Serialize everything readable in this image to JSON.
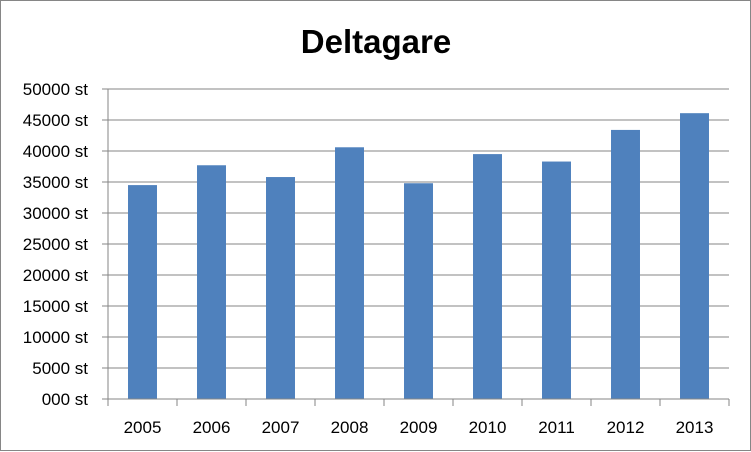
{
  "chart_data": {
    "type": "bar",
    "title": "Deltagare",
    "xlabel": "",
    "ylabel": "",
    "categories": [
      "2005",
      "2006",
      "2007",
      "2008",
      "2009",
      "2010",
      "2011",
      "2012",
      "2013"
    ],
    "values": [
      34500,
      37700,
      35800,
      40600,
      34800,
      39500,
      38300,
      43400,
      46100
    ],
    "ylim": [
      0,
      50000
    ],
    "yticks": [
      {
        "value": 0,
        "label": "000 st"
      },
      {
        "value": 5000,
        "label": "5000 st"
      },
      {
        "value": 10000,
        "label": "10000 st"
      },
      {
        "value": 15000,
        "label": "15000 st"
      },
      {
        "value": 20000,
        "label": "20000 st"
      },
      {
        "value": 25000,
        "label": "25000 st"
      },
      {
        "value": 30000,
        "label": "30000 st"
      },
      {
        "value": 35000,
        "label": "35000 st"
      },
      {
        "value": 40000,
        "label": "40000 st"
      },
      {
        "value": 45000,
        "label": "45000 st"
      },
      {
        "value": 50000,
        "label": "50000 st"
      }
    ],
    "grid": "horizontal",
    "bar_color": "#4F81BD",
    "grid_color": "#868686",
    "legend": "none"
  }
}
